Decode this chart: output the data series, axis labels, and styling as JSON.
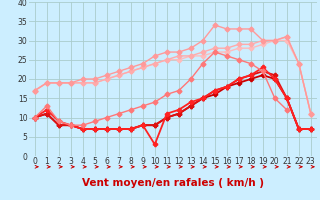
{
  "title": "",
  "xlabel": "Vent moyen/en rafales ( km/h )",
  "ylabel": "",
  "xlim": [
    -0.5,
    23.5
  ],
  "ylim": [
    0,
    40
  ],
  "yticks": [
    0,
    5,
    10,
    15,
    20,
    25,
    30,
    35,
    40
  ],
  "xticks": [
    0,
    1,
    2,
    3,
    4,
    5,
    6,
    7,
    8,
    9,
    10,
    11,
    12,
    13,
    14,
    15,
    16,
    17,
    18,
    19,
    20,
    21,
    22,
    23
  ],
  "bg_color": "#cceeff",
  "grid_color": "#aacccc",
  "series": [
    {
      "x": [
        0,
        1,
        2,
        3,
        4,
        5,
        6,
        7,
        8,
        9,
        10,
        11,
        12,
        13,
        14,
        15,
        16,
        17,
        18,
        19,
        20,
        21,
        22,
        23
      ],
      "y": [
        17,
        19,
        19,
        19,
        19,
        19,
        20,
        21,
        22,
        23,
        24,
        25,
        25,
        26,
        26,
        27,
        27,
        28,
        28,
        29,
        30,
        30,
        24,
        11
      ],
      "color": "#ffbbbb",
      "marker": "D",
      "markersize": 2.5,
      "linewidth": 1.0
    },
    {
      "x": [
        0,
        1,
        2,
        3,
        4,
        5,
        6,
        7,
        8,
        9,
        10,
        11,
        12,
        13,
        14,
        15,
        16,
        17,
        18,
        19,
        20,
        21,
        22,
        23
      ],
      "y": [
        17,
        19,
        19,
        19,
        19,
        19,
        20,
        21,
        22,
        23,
        24,
        25,
        26,
        26,
        27,
        28,
        28,
        29,
        29,
        30,
        30,
        31,
        24,
        11
      ],
      "color": "#ffaaaa",
      "marker": "D",
      "markersize": 2.5,
      "linewidth": 1.0
    },
    {
      "x": [
        0,
        1,
        2,
        3,
        4,
        5,
        6,
        7,
        8,
        9,
        10,
        11,
        12,
        13,
        14,
        15,
        16,
        17,
        18,
        19,
        20,
        21,
        22,
        23
      ],
      "y": [
        17,
        19,
        19,
        19,
        20,
        20,
        21,
        22,
        23,
        24,
        26,
        27,
        27,
        28,
        30,
        34,
        33,
        33,
        33,
        30,
        30,
        31,
        24,
        11
      ],
      "color": "#ff9999",
      "marker": "D",
      "markersize": 2.5,
      "linewidth": 1.0
    },
    {
      "x": [
        0,
        1,
        2,
        3,
        4,
        5,
        6,
        7,
        8,
        9,
        10,
        11,
        12,
        13,
        14,
        15,
        16,
        17,
        18,
        19,
        20,
        21,
        22,
        23
      ],
      "y": [
        10,
        11,
        8,
        8,
        7,
        7,
        7,
        7,
        7,
        8,
        8,
        10,
        11,
        13,
        15,
        16,
        18,
        19,
        20,
        21,
        20,
        15,
        7,
        7
      ],
      "color": "#cc0000",
      "marker": "P",
      "markersize": 3,
      "linewidth": 1.3
    },
    {
      "x": [
        0,
        1,
        2,
        3,
        4,
        5,
        6,
        7,
        8,
        9,
        10,
        11,
        12,
        13,
        14,
        15,
        16,
        17,
        18,
        19,
        20,
        21,
        22,
        23
      ],
      "y": [
        10,
        11,
        8,
        8,
        7,
        7,
        7,
        7,
        7,
        8,
        8,
        10,
        11,
        13,
        15,
        17,
        18,
        20,
        21,
        22,
        21,
        15,
        7,
        7
      ],
      "color": "#dd1111",
      "marker": "P",
      "markersize": 3,
      "linewidth": 1.3
    },
    {
      "x": [
        0,
        1,
        2,
        3,
        4,
        5,
        6,
        7,
        8,
        9,
        10,
        11,
        12,
        13,
        14,
        15,
        16,
        17,
        18,
        19,
        20,
        21,
        22,
        23
      ],
      "y": [
        10,
        12,
        9,
        8,
        7,
        7,
        7,
        7,
        7,
        8,
        3,
        11,
        12,
        14,
        15,
        17,
        18,
        20,
        21,
        23,
        20,
        15,
        7,
        7
      ],
      "color": "#ff2222",
      "marker": "P",
      "markersize": 3,
      "linewidth": 1.3
    },
    {
      "x": [
        0,
        1,
        2,
        3,
        4,
        5,
        6,
        7,
        8,
        9,
        10,
        11,
        12,
        13,
        14,
        15,
        16,
        17,
        18,
        19,
        20,
        21,
        22,
        23
      ],
      "y": [
        10,
        13,
        9,
        8,
        8,
        9,
        10,
        11,
        12,
        13,
        14,
        16,
        17,
        20,
        24,
        27,
        26,
        25,
        24,
        22,
        15,
        12,
        null,
        null
      ],
      "color": "#ff7777",
      "marker": "D",
      "markersize": 2.5,
      "linewidth": 1.0
    }
  ],
  "arrow_color": "#cc0000",
  "xlabel_color": "#cc0000",
  "xlabel_fontsize": 7.5,
  "tick_fontsize": 5.5
}
